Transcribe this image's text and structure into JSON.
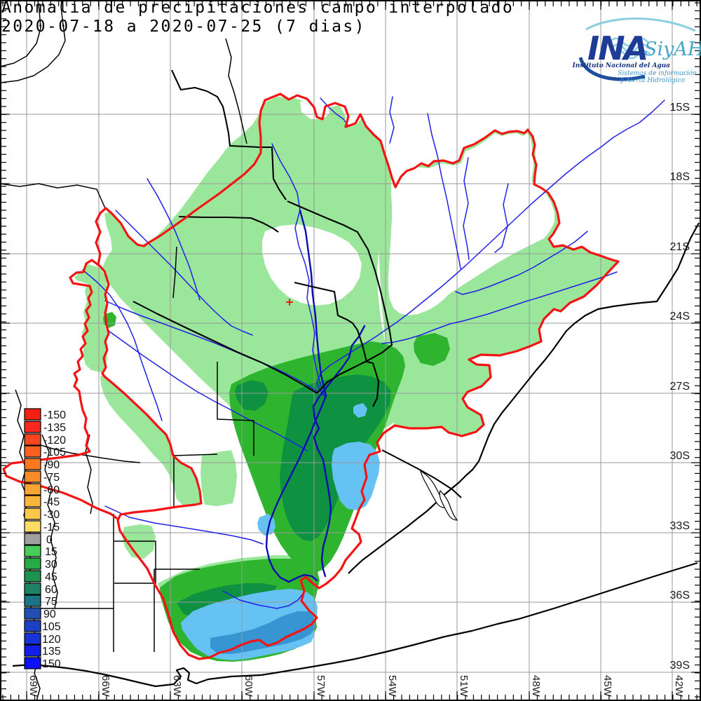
{
  "title": {
    "line1": "Anomalía de precipitaciones campo interpolado",
    "line2": "2020-07-18 a 2020-07-25 (7 dias)"
  },
  "logo": {
    "ina": "INA",
    "siyah": "SiyAH",
    "subtitle": "Instituto Nacional del Agua",
    "tagline1": "Sistemas de información",
    "tagline2": "y Alerta Hidrológico",
    "ina_color": "#1e3c96",
    "siyah_color": "#4aa6c8",
    "wave_color": "#8ccfe0",
    "arc_bottom_color": "#1d4e9e",
    "subtitle_color": "#16357e",
    "tagline_color": "#3c96c8"
  },
  "axes": {
    "lat_labels": [
      "15S",
      "18S",
      "21S",
      "24S",
      "27S",
      "30S",
      "33S",
      "36S",
      "39S"
    ],
    "lon_labels": [
      "69W",
      "66W",
      "63W",
      "60W",
      "57W",
      "54W",
      "51W",
      "48W",
      "45W",
      "42W"
    ]
  },
  "legend": {
    "items": [
      {
        "label": "-150",
        "color": "#f81e14"
      },
      {
        "label": "-135",
        "color": "#f9281e"
      },
      {
        "label": "-120",
        "color": "#fa461e"
      },
      {
        "label": "-105",
        "color": "#fa5f1e"
      },
      {
        "label": "-90",
        "color": "#fa781e"
      },
      {
        "label": "-75",
        "color": "#fa8c28"
      },
      {
        "label": "-60",
        "color": "#f9a532"
      },
      {
        "label": "-45",
        "color": "#fab43c"
      },
      {
        "label": "-30",
        "color": "#fbc84b"
      },
      {
        "label": "-15",
        "color": "#fbdc64"
      },
      {
        "label": "0",
        "color": "#a0a0a0"
      },
      {
        "label": "15",
        "color": "#46cd5a"
      },
      {
        "label": "30",
        "color": "#28aa46"
      },
      {
        "label": "45",
        "color": "#1e9150"
      },
      {
        "label": "60",
        "color": "#1e8264"
      },
      {
        "label": "75",
        "color": "#1e7387"
      },
      {
        "label": "90",
        "color": "#234fb4"
      },
      {
        "label": "105",
        "color": "#1e41c3"
      },
      {
        "label": "120",
        "color": "#1932d7"
      },
      {
        "label": "135",
        "color": "#141eeb"
      },
      {
        "label": "150",
        "color": "#0f0fff"
      }
    ]
  },
  "palette": {
    "light_green": "#9ae69a",
    "mid_green": "#2eb42e",
    "dark_green": "#0e9140",
    "light_blue": "#66c2f2",
    "mid_blue": "#3795d2",
    "river": "#2020e8",
    "river_dark": "#0c0cb4",
    "basin": "#f51414",
    "grid": "#999999"
  }
}
